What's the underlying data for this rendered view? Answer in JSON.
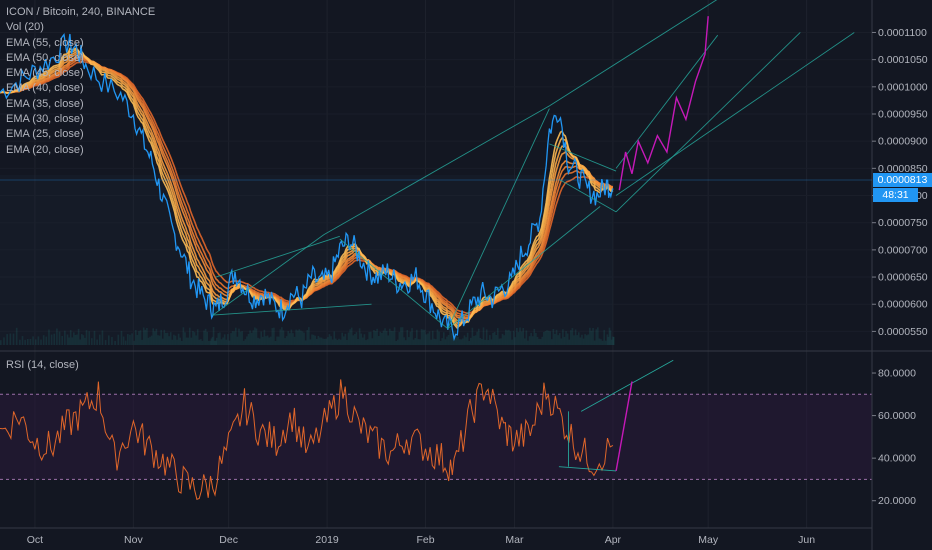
{
  "header": {
    "symbol_line": "ICON / Bitcoin, 240, BINANCE",
    "indicators": [
      "Vol (20)",
      "EMA (55, close)",
      "EMA (50, close)",
      "EMA (45, close)",
      "EMA (40, close)",
      "EMA (35, close)",
      "EMA (30, close)",
      "EMA (25, close)",
      "EMA (20, close)"
    ]
  },
  "rsi_panel": {
    "label": "RSI (14, close)"
  },
  "price_badge": {
    "price": "0.0000813",
    "countdown": "48:31"
  },
  "colors": {
    "background": "#131722",
    "price_line": "#2196f3",
    "ema_band": "#f0813a",
    "trendline": "#26a69a",
    "projection": "#c519b8",
    "rsi_line": "#e0662a",
    "rsi_band": "#2a1a3a"
  },
  "chart_data": [
    {
      "type": "line",
      "panel": "price",
      "y_axis_ticks": [
        "0.0000550",
        "0.0000600",
        "0.0000650",
        "0.0000700",
        "0.0000750",
        "0.0000800",
        "0.0000850",
        "0.0000900",
        "0.0000950",
        "0.0001000",
        "0.0001050",
        "0.0001100"
      ],
      "ylim": [
        5.25e-05,
        0.0001145
      ],
      "x_axis_ticks": [
        "Oct",
        "Nov",
        "Dec",
        "2019",
        "Feb",
        "Mar",
        "Apr",
        "May",
        "Jun"
      ],
      "x_tick_dates": [
        "2018-10-01",
        "2018-11-01",
        "2018-12-01",
        "2019-01-01",
        "2019-02-01",
        "2019-03-01",
        "2019-04-01",
        "2019-05-01",
        "2019-06-01"
      ],
      "series": [
        {
          "x": [
            "2018-09-20",
            "2018-09-26",
            "2018-10-01",
            "2018-10-06",
            "2018-10-11",
            "2018-10-14",
            "2018-10-17",
            "2018-10-22",
            "2018-10-28",
            "2018-11-01",
            "2018-11-04",
            "2018-11-07",
            "2018-11-10",
            "2018-11-13",
            "2018-11-16",
            "2018-11-19",
            "2018-11-22",
            "2018-11-25",
            "2018-11-27",
            "2018-11-30",
            "2018-12-03",
            "2018-12-06",
            "2018-12-09",
            "2018-12-12",
            "2018-12-15",
            "2018-12-18",
            "2018-12-21",
            "2018-12-24",
            "2018-12-27",
            "2018-12-30",
            "2019-01-02",
            "2019-01-05",
            "2019-01-08",
            "2019-01-11",
            "2019-01-14",
            "2019-01-17",
            "2019-01-20",
            "2019-01-23",
            "2019-01-26",
            "2019-01-29",
            "2019-02-01",
            "2019-02-04",
            "2019-02-07",
            "2019-02-10",
            "2019-02-13",
            "2019-02-16",
            "2019-02-19",
            "2019-02-22",
            "2019-02-25",
            "2019-02-28",
            "2019-03-03",
            "2019-03-06",
            "2019-03-09",
            "2019-03-12",
            "2019-03-15",
            "2019-03-18",
            "2019-03-21",
            "2019-03-24",
            "2019-03-27",
            "2019-03-30",
            "2019-04-01"
          ],
          "values": [
            9.9e-05,
            0.000101,
            0.000103,
            0.000105,
            0.000108,
            0.000107,
            0.000104,
            0.000101,
            9.85e-05,
            9.5e-05,
            9e-05,
            8.6e-05,
            8e-05,
            7.4e-05,
            7e-05,
            6.5e-05,
            6.2e-05,
            6e-05,
            5.9e-05,
            6.2e-05,
            6.6e-05,
            6.3e-05,
            6.1e-05,
            6.2e-05,
            6e-05,
            5.9e-05,
            6.2e-05,
            6.1e-05,
            6.5e-05,
            6.4e-05,
            6.5e-05,
            7e-05,
            7.2e-05,
            6.9e-05,
            6.6e-05,
            6.5e-05,
            6.6e-05,
            6.4e-05,
            6.4e-05,
            6.5e-05,
            6.2e-05,
            5.9e-05,
            5.6e-05,
            5.55e-05,
            5.7e-05,
            6e-05,
            6.2e-05,
            6.1e-05,
            6.3e-05,
            6.4e-05,
            6.9e-05,
            7.2e-05,
            7.6e-05,
            9.2e-05,
            9.6e-05,
            8.6e-05,
            8.4e-05,
            8.1e-05,
            8e-05,
            8.2e-05,
            8.13e-05
          ]
        }
      ]
    },
    {
      "type": "line",
      "panel": "rsi",
      "y_axis_ticks": [
        "20.0000",
        "40.0000",
        "60.0000",
        "80.0000"
      ],
      "ylim": [
        10,
        88
      ],
      "band": [
        30,
        70
      ],
      "series": [
        {
          "x": [
            "2018-09-20",
            "2018-09-26",
            "2018-10-01",
            "2018-10-06",
            "2018-10-11",
            "2018-10-16",
            "2018-10-21",
            "2018-10-26",
            "2018-11-01",
            "2018-11-06",
            "2018-11-11",
            "2018-11-16",
            "2018-11-21",
            "2018-11-26",
            "2018-12-01",
            "2018-12-06",
            "2018-12-11",
            "2018-12-16",
            "2018-12-21",
            "2018-12-26",
            "2019-01-01",
            "2019-01-06",
            "2019-01-11",
            "2019-01-16",
            "2019-01-21",
            "2019-01-26",
            "2019-02-01",
            "2019-02-06",
            "2019-02-10",
            "2019-02-15",
            "2019-02-20",
            "2019-02-25",
            "2019-03-01",
            "2019-03-06",
            "2019-03-11",
            "2019-03-16",
            "2019-03-21",
            "2019-03-26",
            "2019-04-01"
          ],
          "values": [
            52,
            60,
            48,
            45,
            55,
            62,
            70,
            40,
            55,
            45,
            38,
            30,
            25,
            28,
            45,
            65,
            52,
            48,
            60,
            42,
            58,
            72,
            55,
            48,
            42,
            50,
            45,
            40,
            35,
            60,
            75,
            55,
            48,
            52,
            72,
            58,
            45,
            38,
            46
          ]
        }
      ]
    }
  ]
}
